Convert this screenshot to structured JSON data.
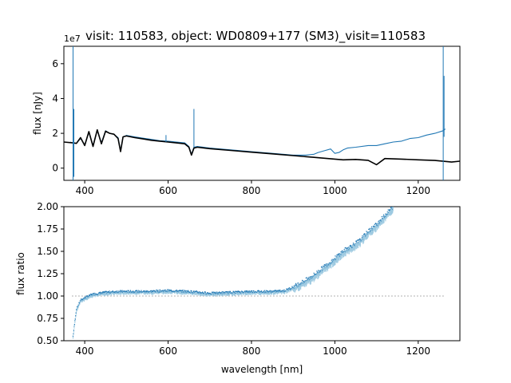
{
  "figure": {
    "title": "visit: 110583, object: WD0809+177 (SM3)_visit=110583"
  },
  "colors": {
    "spectrum": "#1f77b4",
    "model": "#000000",
    "ratio_points": "#1f77b4",
    "ratio_light": "#9ecae1"
  },
  "chart_data": [
    {
      "type": "line",
      "title": "visit: 110583, object: WD0809+177 (SM3)_visit=110583",
      "xlabel": "",
      "ylabel": "flux [nJy]",
      "offset_label": "1e7",
      "xlim": [
        350,
        1300
      ],
      "ylim": [
        -0.7,
        7.0
      ],
      "x_ticks": [
        400,
        600,
        800,
        1000,
        1200
      ],
      "y_ticks": [
        0,
        2,
        4,
        6
      ],
      "grid": false,
      "series": [
        {
          "role": "observed spectrum",
          "color": "#1f77b4",
          "x": [
            365,
            372,
            380,
            390,
            400,
            410,
            420,
            430,
            440,
            450,
            460,
            470,
            480,
            486,
            492,
            500,
            520,
            540,
            560,
            580,
            600,
            620,
            640,
            650,
            656,
            662,
            670,
            700,
            750,
            800,
            850,
            900,
            930,
            950,
            960,
            975,
            990,
            1000,
            1010,
            1020,
            1030,
            1050,
            1080,
            1100,
            1120,
            1140,
            1160,
            1180,
            1200,
            1220,
            1240,
            1260,
            1265
          ],
          "y": [
            1.5,
            1.45,
            1.42,
            1.7,
            1.35,
            2.05,
            1.3,
            2.2,
            1.45,
            2.15,
            2.0,
            1.95,
            1.75,
            1.0,
            1.8,
            1.88,
            1.8,
            1.72,
            1.65,
            1.58,
            1.55,
            1.5,
            1.45,
            1.25,
            0.8,
            1.2,
            1.25,
            1.15,
            1.05,
            0.95,
            0.85,
            0.75,
            0.75,
            0.8,
            0.9,
            1.0,
            1.1,
            0.85,
            0.9,
            1.05,
            1.15,
            1.2,
            1.3,
            1.3,
            1.4,
            1.5,
            1.55,
            1.7,
            1.75,
            1.9,
            2.0,
            2.15,
            2.25
          ]
        },
        {
          "role": "model",
          "color": "#000000",
          "x": [
            350,
            372,
            380,
            390,
            400,
            410,
            420,
            430,
            440,
            450,
            460,
            470,
            480,
            486,
            492,
            500,
            520,
            540,
            560,
            580,
            600,
            620,
            640,
            650,
            656,
            662,
            670,
            700,
            750,
            800,
            850,
            900,
            950,
            1000,
            1020,
            1050,
            1080,
            1100,
            1120,
            1160,
            1200,
            1240,
            1280,
            1300
          ],
          "y": [
            1.5,
            1.45,
            1.42,
            1.75,
            1.3,
            2.1,
            1.25,
            2.2,
            1.4,
            2.12,
            2.0,
            1.95,
            1.7,
            0.95,
            1.8,
            1.85,
            1.75,
            1.68,
            1.6,
            1.55,
            1.5,
            1.45,
            1.4,
            1.2,
            0.75,
            1.15,
            1.2,
            1.12,
            1.02,
            0.92,
            0.82,
            0.72,
            0.62,
            0.52,
            0.48,
            0.5,
            0.45,
            0.2,
            0.55,
            0.52,
            0.48,
            0.44,
            0.35,
            0.4
          ]
        }
      ],
      "spikes": [
        {
          "x": 372,
          "ymin": -0.7,
          "ymax": 7.0
        },
        {
          "x": 374,
          "ymin": -0.5,
          "ymax": 3.4
        },
        {
          "x": 662,
          "ymin": 1.2,
          "ymax": 3.4
        },
        {
          "x": 595,
          "ymin": 1.5,
          "ymax": 1.9
        },
        {
          "x": 1260,
          "ymin": -0.7,
          "ymax": 7.0
        },
        {
          "x": 1262,
          "ymin": 1.8,
          "ymax": 5.3
        }
      ]
    },
    {
      "type": "scatter",
      "title": "",
      "xlabel": "wavelength [nm]",
      "ylabel": "flux ratio",
      "xlim": [
        350,
        1300
      ],
      "ylim": [
        0.5,
        2.0
      ],
      "x_ticks": [
        400,
        600,
        800,
        1000,
        1200
      ],
      "y_ticks": [
        0.5,
        0.75,
        1.0,
        1.25,
        1.5,
        1.75,
        2.0
      ],
      "y_tick_labels": [
        "0.50",
        "0.75",
        "1.00",
        "1.25",
        "1.50",
        "1.75",
        "2.00"
      ],
      "grid": false,
      "reference_line": {
        "y": 1.0,
        "x": [
          370,
          1265
        ],
        "style": "dotted"
      },
      "ratio_trend": {
        "x": [
          372,
          380,
          390,
          400,
          420,
          450,
          480,
          500,
          550,
          600,
          650,
          700,
          750,
          800,
          850,
          880,
          900,
          920,
          940,
          960,
          975,
          990,
          1000,
          1020,
          1040,
          1060,
          1080,
          1100,
          1120,
          1140
        ],
        "y": [
          0.55,
          0.85,
          0.95,
          0.98,
          1.02,
          1.04,
          1.05,
          1.05,
          1.05,
          1.06,
          1.05,
          1.03,
          1.04,
          1.05,
          1.05,
          1.06,
          1.1,
          1.15,
          1.2,
          1.27,
          1.33,
          1.38,
          1.42,
          1.5,
          1.56,
          1.62,
          1.72,
          1.8,
          1.9,
          2.0
        ]
      }
    }
  ]
}
